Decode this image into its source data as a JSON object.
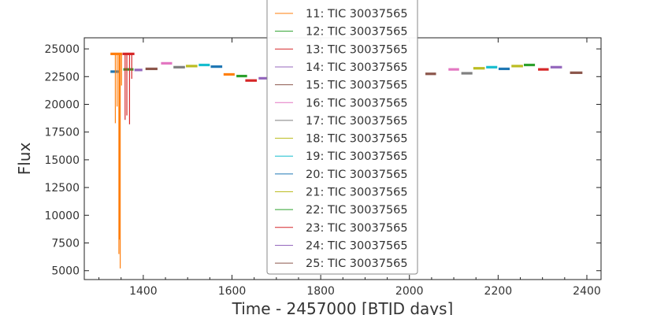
{
  "chart_data": {
    "type": "line",
    "title": "",
    "xlabel": "Time - 2457000 [BTJD days]",
    "ylabel": "Flux",
    "xlim": [
      1267,
      2432
    ],
    "ylim": [
      4200,
      26000
    ],
    "x_ticks": [
      1400,
      1600,
      1800,
      2000,
      2200,
      2400
    ],
    "y_ticks": [
      5000,
      7500,
      10000,
      12500,
      15000,
      17500,
      20000,
      22500,
      25000
    ],
    "grid": false,
    "legend": {
      "placement": "upper-center",
      "visible_entries": [
        {
          "label": "11: TIC 30037565",
          "color": "#ff7f0e"
        },
        {
          "label": "12: TIC 30037565",
          "color": "#2ca02c"
        },
        {
          "label": "13: TIC 30037565",
          "color": "#d62728"
        },
        {
          "label": "14: TIC 30037565",
          "color": "#9467bd"
        },
        {
          "label": "15: TIC 30037565",
          "color": "#8c564b"
        },
        {
          "label": "16: TIC 30037565",
          "color": "#e377c2"
        },
        {
          "label": "17: TIC 30037565",
          "color": "#7f7f7f"
        },
        {
          "label": "18: TIC 30037565",
          "color": "#bcbd22"
        },
        {
          "label": "19: TIC 30037565",
          "color": "#17becf"
        },
        {
          "label": "20: TIC 30037565",
          "color": "#1f77b4"
        },
        {
          "label": "21: TIC 30037565",
          "color": "#bcbd22"
        },
        {
          "label": "22: TIC 30037565",
          "color": "#2ca02c"
        },
        {
          "label": "23: TIC 30037565",
          "color": "#d62728"
        },
        {
          "label": "24: TIC 30037565",
          "color": "#9467bd"
        },
        {
          "label": "25: TIC 30037565",
          "color": "#8c564b"
        }
      ]
    },
    "segments": [
      {
        "x": [
          1326,
          1348
        ],
        "y": 22950,
        "color": "#1f77b4"
      },
      {
        "x": [
          1326,
          1352
        ],
        "y": 24550,
        "color": "#ff7f0e"
      },
      {
        "x": [
          1353,
          1380
        ],
        "y": 24550,
        "color": "#d62728"
      },
      {
        "x": [
          1355,
          1378
        ],
        "y": 23150,
        "color": "#2ca02c"
      },
      {
        "x": [
          1380,
          1398
        ],
        "y": 23100,
        "color": "#9467bd"
      },
      {
        "x": [
          1405,
          1432
        ],
        "y": 23200,
        "color": "#8c564b"
      },
      {
        "x": [
          1440,
          1465
        ],
        "y": 23700,
        "color": "#e377c2"
      },
      {
        "x": [
          1468,
          1494
        ],
        "y": 23350,
        "color": "#7f7f7f"
      },
      {
        "x": [
          1496,
          1522
        ],
        "y": 23450,
        "color": "#bcbd22"
      },
      {
        "x": [
          1525,
          1550
        ],
        "y": 23550,
        "color": "#17becf"
      },
      {
        "x": [
          1552,
          1578
        ],
        "y": 23400,
        "color": "#1f77b4"
      },
      {
        "x": [
          1581,
          1606
        ],
        "y": 22700,
        "color": "#ff7f0e"
      },
      {
        "x": [
          1610,
          1634
        ],
        "y": 22550,
        "color": "#2ca02c"
      },
      {
        "x": [
          1630,
          1656
        ],
        "y": 22150,
        "color": "#d62728"
      },
      {
        "x": [
          1660,
          1684
        ],
        "y": 22350,
        "color": "#9467bd"
      },
      {
        "x": [
          2036,
          2060
        ],
        "y": 22750,
        "color": "#8c564b"
      },
      {
        "x": [
          2088,
          2112
        ],
        "y": 23150,
        "color": "#e377c2"
      },
      {
        "x": [
          2117,
          2142
        ],
        "y": 22800,
        "color": "#7f7f7f"
      },
      {
        "x": [
          2144,
          2170
        ],
        "y": 23250,
        "color": "#bcbd22"
      },
      {
        "x": [
          2173,
          2198
        ],
        "y": 23350,
        "color": "#17becf"
      },
      {
        "x": [
          2201,
          2226
        ],
        "y": 23200,
        "color": "#1f77b4"
      },
      {
        "x": [
          2230,
          2256
        ],
        "y": 23450,
        "color": "#bcbd22"
      },
      {
        "x": [
          2258,
          2283
        ],
        "y": 23550,
        "color": "#2ca02c"
      },
      {
        "x": [
          2290,
          2314
        ],
        "y": 23150,
        "color": "#d62728"
      },
      {
        "x": [
          2318,
          2344
        ],
        "y": 23350,
        "color": "#9467bd"
      },
      {
        "x": [
          2362,
          2390
        ],
        "y": 22850,
        "color": "#8c564b"
      }
    ],
    "dips": [
      {
        "x": 1337,
        "y_top": 24550,
        "y_bottom": 18300,
        "color": "#ff7f0e"
      },
      {
        "x": 1341,
        "y_top": 24550,
        "y_bottom": 19800,
        "color": "#ff7f0e"
      },
      {
        "x": 1345,
        "y_top": 24550,
        "y_bottom": 6500,
        "color": "#ff7f0e"
      },
      {
        "x": 1347,
        "y_top": 24550,
        "y_bottom": 7800,
        "color": "#ff7f0e"
      },
      {
        "x": 1348,
        "y_top": 24550,
        "y_bottom": 5200,
        "color": "#ff7f0e"
      },
      {
        "x": 1351,
        "y_top": 24550,
        "y_bottom": 21700,
        "color": "#ff7f0e"
      },
      {
        "x": 1359,
        "y_top": 24550,
        "y_bottom": 18600,
        "color": "#d62728"
      },
      {
        "x": 1363,
        "y_top": 24550,
        "y_bottom": 19000,
        "color": "#d62728"
      },
      {
        "x": 1369,
        "y_top": 24550,
        "y_bottom": 18200,
        "color": "#d62728"
      },
      {
        "x": 1374,
        "y_top": 24550,
        "y_bottom": 22300,
        "color": "#d62728"
      }
    ]
  }
}
